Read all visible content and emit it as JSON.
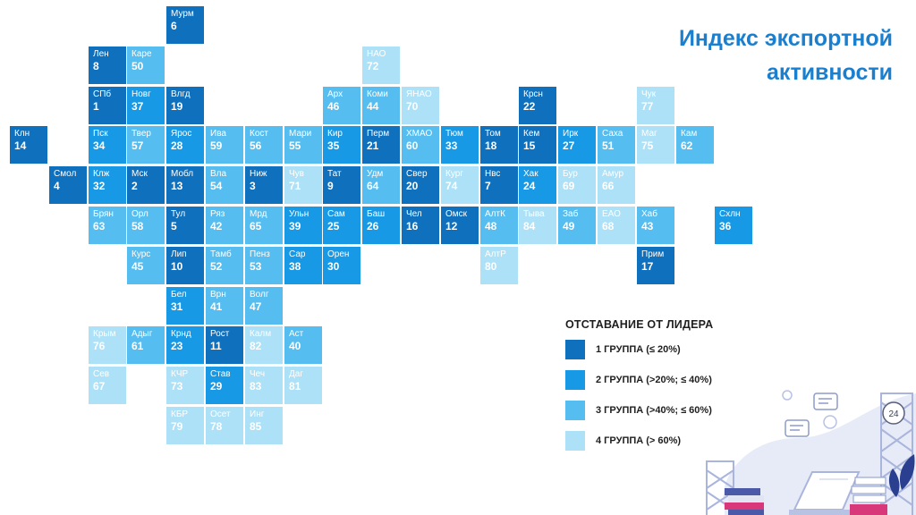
{
  "title": {
    "line1": "Индекс экспортной",
    "line2": "активности"
  },
  "legend": {
    "title": "ОТСТАВАНИЕ ОТ ЛИДЕРА",
    "items": [
      {
        "group": 1,
        "label": "1 ГРУППА (≤ 20%)",
        "color": "#0f70bd"
      },
      {
        "group": 2,
        "label": "2 ГРУППА (>20%; ≤ 40%)",
        "color": "#1799e6"
      },
      {
        "group": 3,
        "label": "3 ГРУППА (>40%; ≤ 60%)",
        "color": "#55bdf0"
      },
      {
        "group": 4,
        "label": "4 ГРУППА (> 60%)",
        "color": "#ade1f8"
      }
    ]
  },
  "badge": "24",
  "chart_data": {
    "type": "heatmap",
    "title": "Индекс экспортной активности",
    "legend_title": "ОТСТАВАНИЕ ОТ ЛИДЕРА",
    "legend_position": "bottom-right",
    "regions": [
      {
        "abbr": "Мурм",
        "rank": 6,
        "group": 1,
        "col": 4,
        "row": 0
      },
      {
        "abbr": "Лен",
        "rank": 8,
        "group": 1,
        "col": 2,
        "row": 1
      },
      {
        "abbr": "Каре",
        "rank": 50,
        "group": 3,
        "col": 3,
        "row": 1
      },
      {
        "abbr": "НАО",
        "rank": 72,
        "group": 4,
        "col": 9,
        "row": 1
      },
      {
        "abbr": "СПб",
        "rank": 1,
        "group": 1,
        "col": 2,
        "row": 2
      },
      {
        "abbr": "Новг",
        "rank": 37,
        "group": 2,
        "col": 3,
        "row": 2
      },
      {
        "abbr": "Влгд",
        "rank": 19,
        "group": 1,
        "col": 4,
        "row": 2
      },
      {
        "abbr": "Арх",
        "rank": 46,
        "group": 3,
        "col": 8,
        "row": 2
      },
      {
        "abbr": "Коми",
        "rank": 44,
        "group": 3,
        "col": 9,
        "row": 2
      },
      {
        "abbr": "ЯНАО",
        "rank": 70,
        "group": 4,
        "col": 10,
        "row": 2
      },
      {
        "abbr": "Крсн",
        "rank": 22,
        "group": 1,
        "col": 13,
        "row": 2
      },
      {
        "abbr": "Чук",
        "rank": 77,
        "group": 4,
        "col": 16,
        "row": 2
      },
      {
        "abbr": "Клн",
        "rank": 14,
        "group": 1,
        "col": 0,
        "row": 3
      },
      {
        "abbr": "Пск",
        "rank": 34,
        "group": 2,
        "col": 2,
        "row": 3
      },
      {
        "abbr": "Твер",
        "rank": 57,
        "group": 3,
        "col": 3,
        "row": 3
      },
      {
        "abbr": "Ярос",
        "rank": 28,
        "group": 2,
        "col": 4,
        "row": 3
      },
      {
        "abbr": "Ива",
        "rank": 59,
        "group": 3,
        "col": 5,
        "row": 3
      },
      {
        "abbr": "Кост",
        "rank": 56,
        "group": 3,
        "col": 6,
        "row": 3
      },
      {
        "abbr": "Мари",
        "rank": 55,
        "group": 3,
        "col": 7,
        "row": 3
      },
      {
        "abbr": "Кир",
        "rank": 35,
        "group": 2,
        "col": 8,
        "row": 3
      },
      {
        "abbr": "Перм",
        "rank": 21,
        "group": 1,
        "col": 9,
        "row": 3
      },
      {
        "abbr": "ХМАО",
        "rank": 60,
        "group": 3,
        "col": 10,
        "row": 3
      },
      {
        "abbr": "Тюм",
        "rank": 33,
        "group": 2,
        "col": 11,
        "row": 3
      },
      {
        "abbr": "Том",
        "rank": 18,
        "group": 1,
        "col": 12,
        "row": 3
      },
      {
        "abbr": "Кем",
        "rank": 15,
        "group": 1,
        "col": 13,
        "row": 3
      },
      {
        "abbr": "Ирк",
        "rank": 27,
        "group": 2,
        "col": 14,
        "row": 3
      },
      {
        "abbr": "Саха",
        "rank": 51,
        "group": 3,
        "col": 15,
        "row": 3
      },
      {
        "abbr": "Маг",
        "rank": 75,
        "group": 4,
        "col": 16,
        "row": 3
      },
      {
        "abbr": "Кам",
        "rank": 62,
        "group": 3,
        "col": 17,
        "row": 3
      },
      {
        "abbr": "Смол",
        "rank": 4,
        "group": 1,
        "col": 1,
        "row": 4
      },
      {
        "abbr": "Клж",
        "rank": 32,
        "group": 2,
        "col": 2,
        "row": 4
      },
      {
        "abbr": "Мск",
        "rank": 2,
        "group": 1,
        "col": 3,
        "row": 4
      },
      {
        "abbr": "Мобл",
        "rank": 13,
        "group": 1,
        "col": 4,
        "row": 4
      },
      {
        "abbr": "Вла",
        "rank": 54,
        "group": 3,
        "col": 5,
        "row": 4
      },
      {
        "abbr": "Ниж",
        "rank": 3,
        "group": 1,
        "col": 6,
        "row": 4
      },
      {
        "abbr": "Чув",
        "rank": 71,
        "group": 4,
        "col": 7,
        "row": 4
      },
      {
        "abbr": "Тат",
        "rank": 9,
        "group": 1,
        "col": 8,
        "row": 4
      },
      {
        "abbr": "Удм",
        "rank": 64,
        "group": 3,
        "col": 9,
        "row": 4
      },
      {
        "abbr": "Свер",
        "rank": 20,
        "group": 1,
        "col": 10,
        "row": 4
      },
      {
        "abbr": "Кург",
        "rank": 74,
        "group": 4,
        "col": 11,
        "row": 4
      },
      {
        "abbr": "Нвс",
        "rank": 7,
        "group": 1,
        "col": 12,
        "row": 4
      },
      {
        "abbr": "Хак",
        "rank": 24,
        "group": 2,
        "col": 13,
        "row": 4
      },
      {
        "abbr": "Бур",
        "rank": 69,
        "group": 4,
        "col": 14,
        "row": 4
      },
      {
        "abbr": "Амур",
        "rank": 66,
        "group": 4,
        "col": 15,
        "row": 4
      },
      {
        "abbr": "Брян",
        "rank": 63,
        "group": 3,
        "col": 2,
        "row": 5
      },
      {
        "abbr": "Орл",
        "rank": 58,
        "group": 3,
        "col": 3,
        "row": 5
      },
      {
        "abbr": "Тул",
        "rank": 5,
        "group": 1,
        "col": 4,
        "row": 5
      },
      {
        "abbr": "Ряз",
        "rank": 42,
        "group": 3,
        "col": 5,
        "row": 5
      },
      {
        "abbr": "Мрд",
        "rank": 65,
        "group": 3,
        "col": 6,
        "row": 5
      },
      {
        "abbr": "Ульн",
        "rank": 39,
        "group": 2,
        "col": 7,
        "row": 5
      },
      {
        "abbr": "Сам",
        "rank": 25,
        "group": 2,
        "col": 8,
        "row": 5
      },
      {
        "abbr": "Баш",
        "rank": 26,
        "group": 2,
        "col": 9,
        "row": 5
      },
      {
        "abbr": "Чел",
        "rank": 16,
        "group": 1,
        "col": 10,
        "row": 5
      },
      {
        "abbr": "Омск",
        "rank": 12,
        "group": 1,
        "col": 11,
        "row": 5
      },
      {
        "abbr": "АлтК",
        "rank": 48,
        "group": 3,
        "col": 12,
        "row": 5
      },
      {
        "abbr": "Тыва",
        "rank": 84,
        "group": 4,
        "col": 13,
        "row": 5
      },
      {
        "abbr": "Заб",
        "rank": 49,
        "group": 3,
        "col": 14,
        "row": 5
      },
      {
        "abbr": "ЕАО",
        "rank": 68,
        "group": 4,
        "col": 15,
        "row": 5
      },
      {
        "abbr": "Хаб",
        "rank": 43,
        "group": 3,
        "col": 16,
        "row": 5
      },
      {
        "abbr": "Схлн",
        "rank": 36,
        "group": 2,
        "col": 18,
        "row": 5
      },
      {
        "abbr": "Курс",
        "rank": 45,
        "group": 3,
        "col": 3,
        "row": 6
      },
      {
        "abbr": "Лип",
        "rank": 10,
        "group": 1,
        "col": 4,
        "row": 6
      },
      {
        "abbr": "Тамб",
        "rank": 52,
        "group": 3,
        "col": 5,
        "row": 6
      },
      {
        "abbr": "Пенз",
        "rank": 53,
        "group": 3,
        "col": 6,
        "row": 6
      },
      {
        "abbr": "Сар",
        "rank": 38,
        "group": 2,
        "col": 7,
        "row": 6
      },
      {
        "abbr": "Орен",
        "rank": 30,
        "group": 2,
        "col": 8,
        "row": 6
      },
      {
        "abbr": "АлтР",
        "rank": 80,
        "group": 4,
        "col": 12,
        "row": 6
      },
      {
        "abbr": "Прим",
        "rank": 17,
        "group": 1,
        "col": 16,
        "row": 6
      },
      {
        "abbr": "Бел",
        "rank": 31,
        "group": 2,
        "col": 4,
        "row": 7
      },
      {
        "abbr": "Врн",
        "rank": 41,
        "group": 3,
        "col": 5,
        "row": 7
      },
      {
        "abbr": "Волг",
        "rank": 47,
        "group": 3,
        "col": 6,
        "row": 7
      },
      {
        "abbr": "Крым",
        "rank": 76,
        "group": 4,
        "col": 2,
        "row": 8
      },
      {
        "abbr": "Адыг",
        "rank": 61,
        "group": 3,
        "col": 3,
        "row": 8
      },
      {
        "abbr": "Крнд",
        "rank": 23,
        "group": 2,
        "col": 4,
        "row": 8
      },
      {
        "abbr": "Рост",
        "rank": 11,
        "group": 1,
        "col": 5,
        "row": 8
      },
      {
        "abbr": "Калм",
        "rank": 82,
        "group": 4,
        "col": 6,
        "row": 8
      },
      {
        "abbr": "Аст",
        "rank": 40,
        "group": 3,
        "col": 7,
        "row": 8
      },
      {
        "abbr": "Сев",
        "rank": 67,
        "group": 4,
        "col": 2,
        "row": 9
      },
      {
        "abbr": "КЧР",
        "rank": 73,
        "group": 4,
        "col": 4,
        "row": 9
      },
      {
        "abbr": "Став",
        "rank": 29,
        "group": 2,
        "col": 5,
        "row": 9
      },
      {
        "abbr": "Чеч",
        "rank": 83,
        "group": 4,
        "col": 6,
        "row": 9
      },
      {
        "abbr": "Даг",
        "rank": 81,
        "group": 4,
        "col": 7,
        "row": 9
      },
      {
        "abbr": "КБР",
        "rank": 79,
        "group": 4,
        "col": 4,
        "row": 10
      },
      {
        "abbr": "Осет",
        "rank": 78,
        "group": 4,
        "col": 5,
        "row": 10
      },
      {
        "abbr": "Инг",
        "rank": 85,
        "group": 4,
        "col": 6,
        "row": 10
      }
    ]
  }
}
